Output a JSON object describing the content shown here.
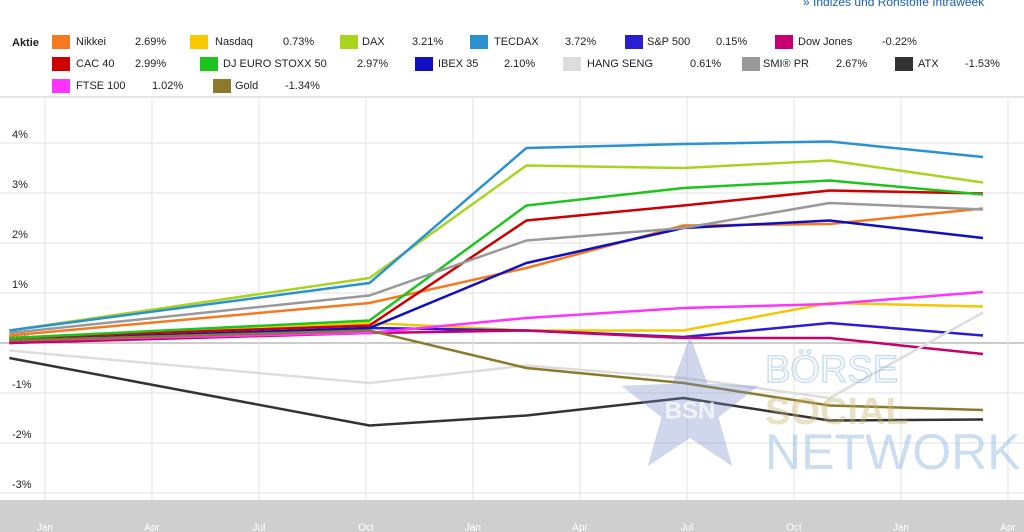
{
  "chart_data": {
    "type": "line",
    "link": "» Indizes und Rohstoffe Intraweek",
    "legend_title": "Aktie",
    "watermark": {
      "badge": "BSN",
      "lines": [
        "BÖRSE",
        "SOCIAL",
        "NETWORK"
      ]
    },
    "x": [
      -1.0,
      9.1,
      13.5,
      17.9,
      22.0,
      26.3
    ],
    "xlim": [
      -1.26,
      27.45
    ],
    "xticks": [
      {
        "value": 0,
        "label": "Jan"
      },
      {
        "value": 3,
        "label": "Apr"
      },
      {
        "value": 6,
        "label": "Jul"
      },
      {
        "value": 9,
        "label": "Oct"
      },
      {
        "value": 12,
        "label": "Jan"
      },
      {
        "value": 15,
        "label": "Apr"
      },
      {
        "value": 18,
        "label": "Jul"
      },
      {
        "value": 21,
        "label": "Oct"
      },
      {
        "value": 24,
        "label": "Jan"
      },
      {
        "value": 27,
        "label": "Apr"
      }
    ],
    "ylim": [
      -3.14,
      4.92
    ],
    "yticks": [
      {
        "value": -3,
        "label": "-3%"
      },
      {
        "value": -2,
        "label": "-2%"
      },
      {
        "value": -1,
        "label": "-1%"
      },
      {
        "value": 0,
        "label": "0%"
      },
      {
        "value": 1,
        "label": "1%"
      },
      {
        "value": 2,
        "label": "2%"
      },
      {
        "value": 3,
        "label": "3%"
      },
      {
        "value": 4,
        "label": "4%"
      }
    ],
    "grid": true,
    "series": [
      {
        "name": "Nikkei",
        "change": "2.69%",
        "color": "#f47a20",
        "values": [
          0.15,
          0.8,
          1.5,
          2.35,
          2.38,
          2.69
        ]
      },
      {
        "name": "Nasdaq",
        "change": "0.73%",
        "color": "#f5c800",
        "values": [
          0.05,
          0.4,
          0.25,
          0.25,
          0.8,
          0.73
        ]
      },
      {
        "name": "DAX",
        "change": "3.21%",
        "color": "#a8d420",
        "values": [
          0.25,
          1.3,
          3.55,
          3.5,
          3.65,
          3.21
        ]
      },
      {
        "name": "TECDAX",
        "change": "3.72%",
        "color": "#2a92d2",
        "values": [
          0.25,
          1.2,
          3.9,
          3.98,
          4.03,
          3.72
        ]
      },
      {
        "name": "S&P 500",
        "change": "0.15%",
        "color": "#2a1fd0",
        "values": [
          0.0,
          0.3,
          0.25,
          0.12,
          0.4,
          0.15
        ]
      },
      {
        "name": "Dow Jones",
        "change": "-0.22%",
        "color": "#c8006e",
        "values": [
          0.0,
          0.2,
          0.25,
          0.1,
          0.1,
          -0.22
        ]
      },
      {
        "name": "CAC 40",
        "change": "2.99%",
        "color": "#cc0000",
        "values": [
          0.1,
          0.35,
          2.45,
          2.75,
          3.05,
          2.99
        ]
      },
      {
        "name": "DJ EURO STOXX 50",
        "change": "2.97%",
        "color": "#1ec41e",
        "values": [
          0.1,
          0.45,
          2.75,
          3.1,
          3.25,
          2.97
        ]
      },
      {
        "name": "IBEX 35",
        "change": "2.10%",
        "color": "#1010c0",
        "values": [
          0.05,
          0.3,
          1.6,
          2.3,
          2.45,
          2.1
        ]
      },
      {
        "name": "HANG SENG",
        "change": "0.61%",
        "color": "#dddddd",
        "values": [
          -0.15,
          -0.8,
          -0.45,
          -0.7,
          -1.1,
          0.61
        ]
      },
      {
        "name": "SMI® PR",
        "change": "2.67%",
        "color": "#999999",
        "values": [
          0.2,
          0.95,
          2.05,
          2.3,
          2.8,
          2.67
        ]
      },
      {
        "name": "ATX",
        "change": "-1.53%",
        "color": "#333333",
        "values": [
          -0.3,
          -1.65,
          -1.45,
          -1.1,
          -1.55,
          -1.53
        ]
      },
      {
        "name": "FTSE 100",
        "change": "1.02%",
        "color": "#ff33ff",
        "values": [
          0.05,
          0.2,
          0.5,
          0.7,
          0.78,
          1.02
        ]
      },
      {
        "name": "Gold",
        "change": "-1.34%",
        "color": "#8b7a2a",
        "values": [
          0.05,
          0.25,
          -0.5,
          -0.8,
          -1.25,
          -1.34
        ]
      }
    ]
  }
}
